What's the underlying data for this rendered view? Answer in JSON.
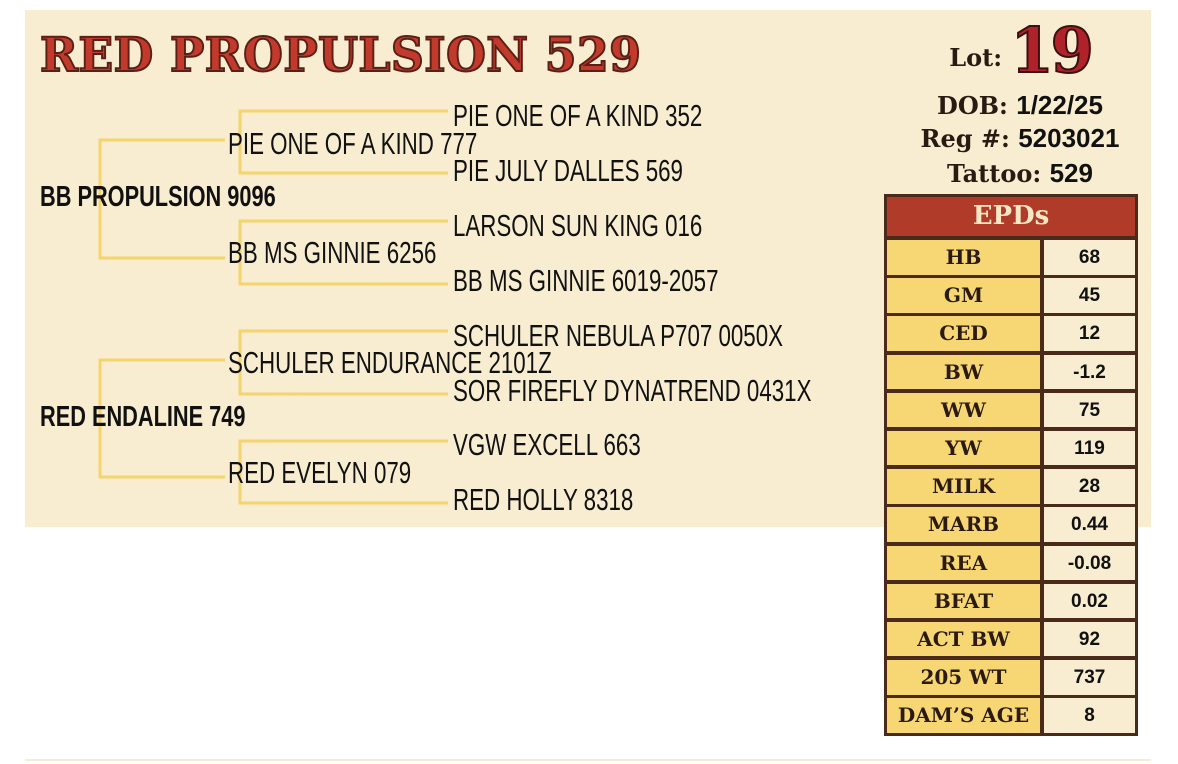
{
  "title": "RED PROPULSION 529",
  "pedigree": {
    "sire": "BB PROPULSION 9096",
    "sire_sire": "PIE ONE OF A KIND 777",
    "sire_sire_sire": "PIE ONE OF A KIND 352",
    "sire_sire_dam": "PIE JULY DALLES 569",
    "sire_dam": "BB MS GINNIE 6256",
    "sire_dam_sire": "LARSON SUN KING 016",
    "sire_dam_dam": "BB MS GINNIE 6019-2057",
    "dam": "RED ENDALINE 749",
    "dam_sire": "SCHULER ENDURANCE 2101Z",
    "dam_sire_sire": "SCHULER NEBULA P707 0050X",
    "dam_sire_dam": "SOR FIREFLY DYNATREND 0431X",
    "dam_dam": "RED EVELYN 079",
    "dam_dam_sire": "VGW EXCELL 663",
    "dam_dam_dam": "RED HOLLY 8318"
  },
  "info": {
    "lot_label": "Lot:",
    "lot": "19",
    "dob_label": "DOB:",
    "dob": "1/22/25",
    "reg_label": "Reg #:",
    "reg": "5203021",
    "tattoo_label": "Tattoo:",
    "tattoo": "529"
  },
  "epds": {
    "header": "EPDs",
    "rows": [
      {
        "label": "HB",
        "value": "68"
      },
      {
        "label": "GM",
        "value": "45"
      },
      {
        "label": "CED",
        "value": "12"
      },
      {
        "label": "BW",
        "value": "-1.2"
      },
      {
        "label": "WW",
        "value": "75"
      },
      {
        "label": "YW",
        "value": "119"
      },
      {
        "label": "MILK",
        "value": "28"
      },
      {
        "label": "MARB",
        "value": "0.44"
      },
      {
        "label": "REA",
        "value": "-0.08"
      },
      {
        "label": "BFAT",
        "value": "0.02"
      },
      {
        "label": "ACT BW",
        "value": "92"
      },
      {
        "label": "205 WT",
        "value": "737"
      },
      {
        "label": "DAM’S AGE",
        "value": "8"
      }
    ]
  },
  "colors": {
    "title": "#c23a2b",
    "panel": "#f8edd0",
    "lines": "#f5d46e",
    "epd_header": "#b03b28",
    "epd_label": "#f7d774",
    "border": "#4a2a1a"
  }
}
